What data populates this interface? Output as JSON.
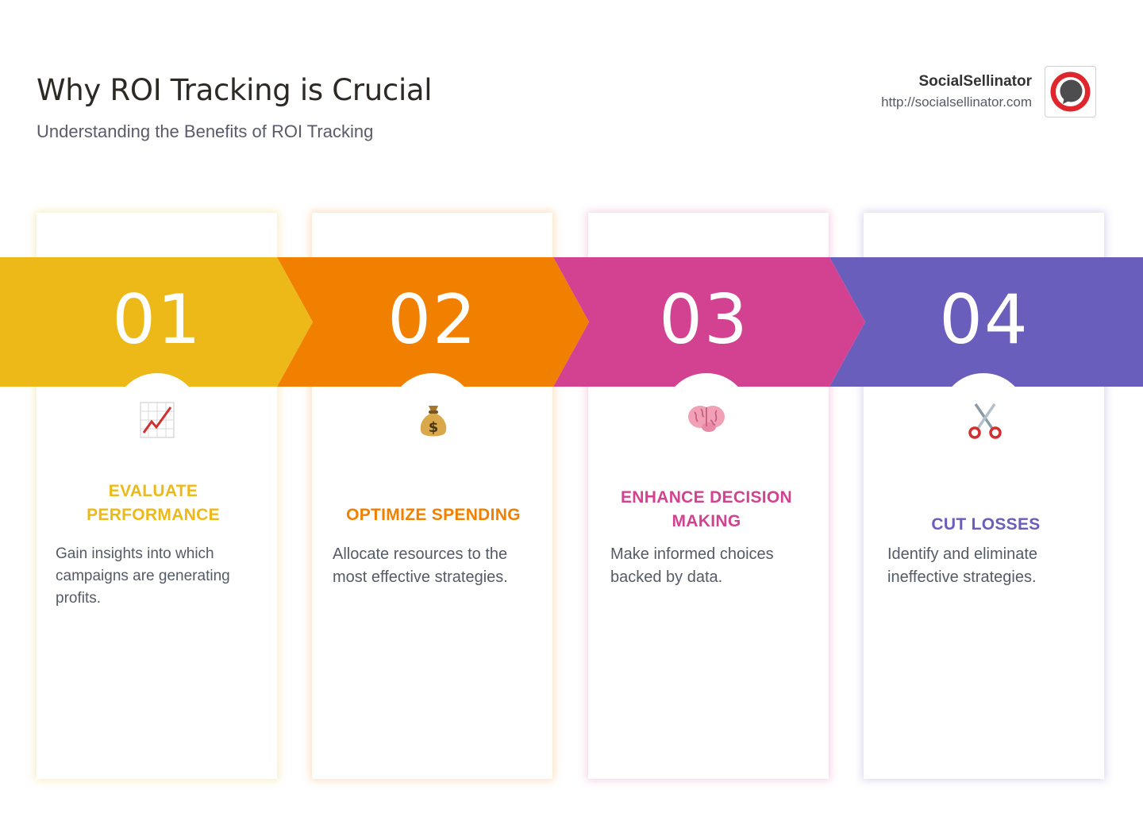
{
  "header": {
    "title": "Why ROI Tracking is Crucial",
    "subtitle": "Understanding the Benefits of ROI Tracking"
  },
  "brand": {
    "name": "SocialSellinator",
    "url": "http://socialsellinator.com"
  },
  "steps": [
    {
      "number": "01",
      "heading_lines": [
        "EVALUATE",
        "PERFORMANCE"
      ],
      "description": "Gain insights into which campaigns are generating profits.",
      "icon": "chart-increasing-icon",
      "color": "#ECB919"
    },
    {
      "number": "02",
      "heading_lines": [
        "OPTIMIZE SPENDING"
      ],
      "description": "Allocate resources to the most effective strategies.",
      "icon": "money-bag-icon",
      "color": "#F18000"
    },
    {
      "number": "03",
      "heading_lines": [
        "ENHANCE DECISION",
        "MAKING"
      ],
      "description": "Make informed choices backed by data.",
      "icon": "brain-icon",
      "color": "#D24291"
    },
    {
      "number": "04",
      "heading_lines": [
        "CUT LOSSES"
      ],
      "description": "Identify and eliminate ineffective strategies.",
      "icon": "scissors-icon",
      "color": "#695EBC"
    }
  ]
}
